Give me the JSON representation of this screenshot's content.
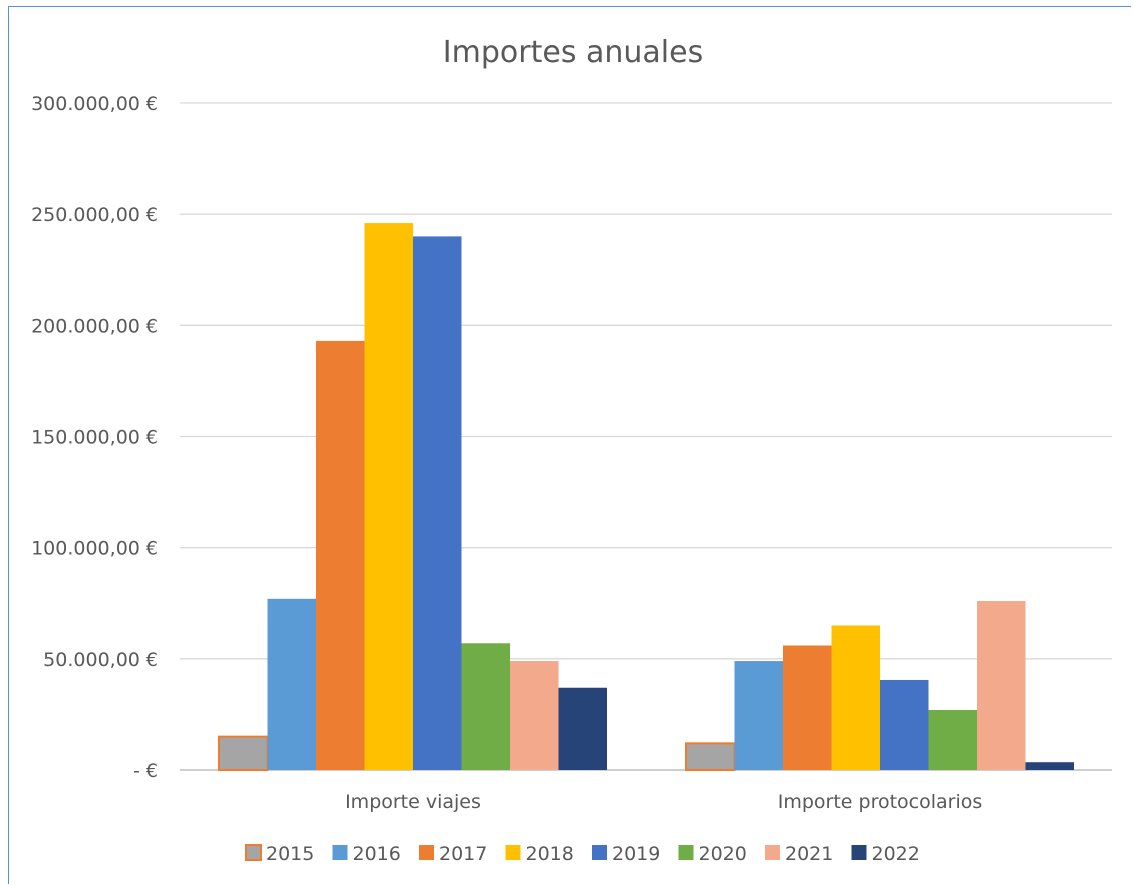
{
  "chart_data": {
    "type": "bar",
    "title": "Importes anuales",
    "xlabel": "",
    "ylabel": "",
    "categories": [
      "Importe viajes",
      "Importe protocolarios"
    ],
    "y_ticks": [
      0,
      50000,
      100000,
      150000,
      200000,
      250000,
      300000
    ],
    "y_tick_labels": [
      "-   €",
      "50.000,00 €",
      "100.000,00 €",
      "150.000,00 €",
      "200.000,00 €",
      "250.000,00 €",
      "300.000,00 €"
    ],
    "ylim": [
      0,
      300000
    ],
    "grid": true,
    "legend_position": "bottom",
    "series": [
      {
        "name": "2015",
        "color": "#a5a5a5",
        "outline": "#ed7d31",
        "values": [
          15000,
          12000
        ]
      },
      {
        "name": "2016",
        "color": "#5b9bd5",
        "values": [
          77000,
          49000
        ]
      },
      {
        "name": "2017",
        "color": "#ed7d31",
        "values": [
          193000,
          56000
        ]
      },
      {
        "name": "2018",
        "color": "#ffc000",
        "values": [
          246000,
          65000
        ]
      },
      {
        "name": "2019",
        "color": "#4472c4",
        "values": [
          240000,
          40500
        ]
      },
      {
        "name": "2020",
        "color": "#70ad47",
        "values": [
          57000,
          27000
        ]
      },
      {
        "name": "2021",
        "color": "#f2a98c",
        "values": [
          49000,
          76000
        ]
      },
      {
        "name": "2022",
        "color": "#264478",
        "values": [
          37000,
          3500
        ]
      }
    ]
  }
}
